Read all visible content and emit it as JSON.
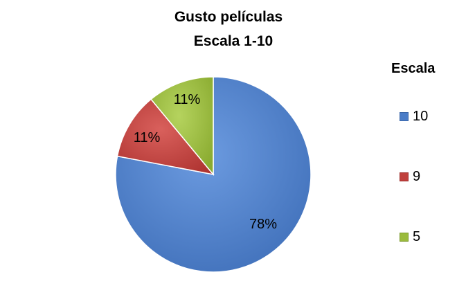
{
  "chart_data": {
    "type": "pie",
    "title": "Gusto películas",
    "subtitle": "Escala 1-10",
    "legend_title": "Escala",
    "legend_position": "right",
    "slices": [
      {
        "label": "10",
        "value": 78,
        "value_label": "78%",
        "color": "#4a7cc7"
      },
      {
        "label": "9",
        "value": 11,
        "value_label": "11%",
        "color": "#c0403c"
      },
      {
        "label": "5",
        "value": 11,
        "value_label": "11%",
        "color": "#9bbb3d"
      }
    ]
  }
}
